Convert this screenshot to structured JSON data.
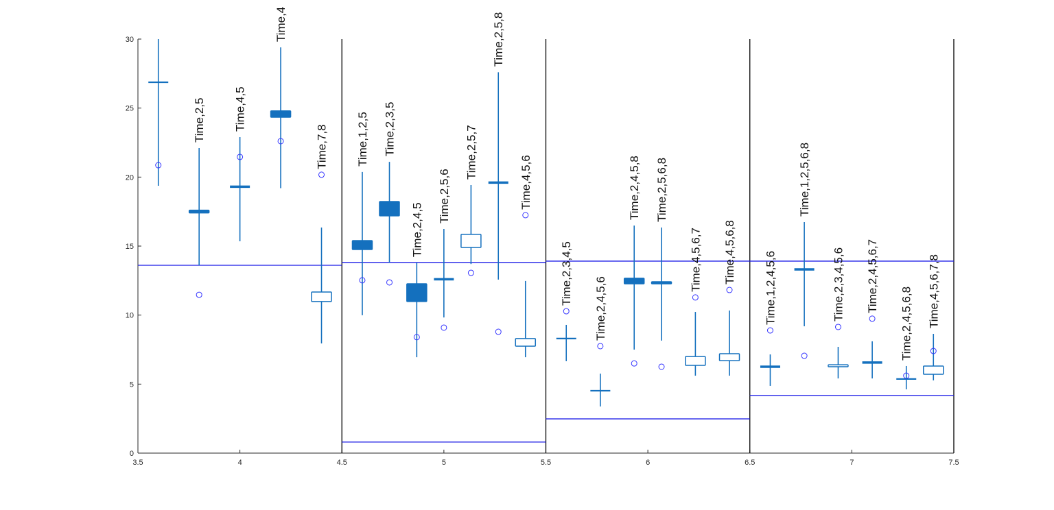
{
  "chart_data": {
    "type": "boxplot",
    "title": "",
    "xlabel": "",
    "ylabel": "",
    "xlim": [
      3.5,
      7.5
    ],
    "ylim": [
      0,
      30
    ],
    "xticks": [
      "3.5",
      "4",
      "4.5",
      "5",
      "5.5",
      "6",
      "6.5",
      "7",
      "7.5"
    ],
    "yticks": [
      "0",
      "5",
      "10",
      "15",
      "20",
      "25",
      "30"
    ],
    "grid": false,
    "colors": {
      "box": "#1470be",
      "point": "#3333ff",
      "reference_line": "#1a1ae6",
      "separator": "#000000"
    },
    "separators": [
      4.5,
      5.5,
      6.5,
      7.5
    ],
    "reference_lines": [
      {
        "x": [
          3.5,
          4.5
        ],
        "y": [
          13.61
        ]
      },
      {
        "x": [
          4.5,
          5.5
        ],
        "y": [
          13.81,
          0.8
        ]
      },
      {
        "x": [
          5.5,
          6.5
        ],
        "y": [
          13.91,
          2.48
        ]
      },
      {
        "x": [
          6.5,
          7.5
        ],
        "y": [
          13.91,
          4.17
        ]
      }
    ],
    "items": [
      {
        "x": 3.6,
        "label": "",
        "whisker": [
          19.37,
          30
        ],
        "box": [
          26.87,
          26.87
        ],
        "filled": false,
        "point": 20.86
      },
      {
        "x": 3.8,
        "label": "Time,2,5",
        "whisker": [
          13.6,
          22.1
        ],
        "box": [
          17.4,
          17.6
        ],
        "filled": true,
        "point": 11.47
      },
      {
        "x": 4.0,
        "label": "Time,4,5",
        "whisker": [
          15.35,
          22.9
        ],
        "box": [
          19.3,
          19.3
        ],
        "filled": true,
        "point": 21.46
      },
      {
        "x": 4.2,
        "label": "Time,4",
        "whisker": [
          19.2,
          29.4
        ],
        "box": [
          24.34,
          24.8
        ],
        "filled": true,
        "point": 22.6
      },
      {
        "x": 4.4,
        "label": "Time,7,8",
        "whisker": [
          7.95,
          16.35
        ],
        "box": [
          10.98,
          11.67
        ],
        "filled": false,
        "point": 20.17
      },
      {
        "x": 4.6,
        "label": "Time,1,2,5",
        "whisker": [
          9.99,
          20.37
        ],
        "box": [
          14.75,
          15.4
        ],
        "filled": true,
        "point": 12.52
      },
      {
        "x": 4.733,
        "label": "Time,2,3,5",
        "whisker": [
          13.8,
          21.1
        ],
        "box": [
          17.19,
          18.23
        ],
        "filled": true,
        "point": 12.37
      },
      {
        "x": 4.867,
        "label": "Time,2,4,5",
        "whisker": [
          6.95,
          13.8
        ],
        "box": [
          10.98,
          12.27
        ],
        "filled": true,
        "point": 8.4
      },
      {
        "x": 5.0,
        "label": "Time,2,5,6",
        "whisker": [
          9.83,
          16.24
        ],
        "box": [
          12.6,
          12.6
        ],
        "filled": true,
        "point": 9.09
      },
      {
        "x": 5.133,
        "label": "Time,2,5,7",
        "whisker": [
          13.7,
          19.42
        ],
        "box": [
          14.9,
          15.85
        ],
        "filled": false,
        "point": 13.06
      },
      {
        "x": 5.267,
        "label": "Time,2,5,8",
        "whisker": [
          12.57,
          27.6
        ],
        "box": [
          19.6,
          19.6
        ],
        "filled": true,
        "point": 8.79
      },
      {
        "x": 5.4,
        "label": "Time,4,5,6",
        "whisker": [
          6.95,
          12.47
        ],
        "box": [
          7.75,
          8.3
        ],
        "filled": false,
        "point": 17.24
      },
      {
        "x": 5.6,
        "label": "Time,2,3,4,5",
        "whisker": [
          6.66,
          9.29
        ],
        "box": [
          8.3,
          8.3
        ],
        "filled": false,
        "point": 10.28
      },
      {
        "x": 5.767,
        "label": "Time,2,4,5,6",
        "whisker": [
          3.38,
          5.76
        ],
        "box": [
          4.52,
          4.52
        ],
        "filled": false,
        "point": 7.75
      },
      {
        "x": 5.933,
        "label": "Time,2,4,5,8",
        "whisker": [
          7.5,
          16.49
        ],
        "box": [
          12.27,
          12.67
        ],
        "filled": true,
        "point": 6.5
      },
      {
        "x": 6.067,
        "label": "Time,2,5,6,8",
        "whisker": [
          8.15,
          16.35
        ],
        "box": [
          12.27,
          12.42
        ],
        "filled": true,
        "point": 6.26
      },
      {
        "x": 6.233,
        "label": "Time,4,5,6,7",
        "whisker": [
          5.61,
          10.23
        ],
        "box": [
          6.36,
          7.0
        ],
        "filled": false,
        "point": 11.28
      },
      {
        "x": 6.4,
        "label": "Time,4,5,6,8",
        "whisker": [
          5.61,
          10.33
        ],
        "box": [
          6.7,
          7.2
        ],
        "filled": false,
        "point": 11.82
      },
      {
        "x": 6.6,
        "label": "Time,1,2,4,5,6",
        "whisker": [
          4.87,
          7.15
        ],
        "box": [
          6.26,
          6.26
        ],
        "filled": true,
        "point": 8.89
      },
      {
        "x": 6.767,
        "label": "Time,1,2,5,6,8",
        "whisker": [
          9.19,
          16.74
        ],
        "box": [
          13.31,
          13.31
        ],
        "filled": true,
        "point": 7.05
      },
      {
        "x": 6.933,
        "label": "Time,2,3,4,5,6",
        "whisker": [
          5.41,
          7.7
        ],
        "box": [
          6.26,
          6.4
        ],
        "filled": false,
        "point": 9.14
      },
      {
        "x": 7.1,
        "label": "Time,2,4,5,6,7",
        "whisker": [
          5.41,
          8.1
        ],
        "box": [
          6.56,
          6.56
        ],
        "filled": true,
        "point": 9.74
      },
      {
        "x": 7.267,
        "label": "Time,2,4,5,6,8",
        "whisker": [
          4.62,
          6.31
        ],
        "box": [
          5.37,
          5.37
        ],
        "filled": false,
        "point": 5.61
      },
      {
        "x": 7.4,
        "label": "Time,4,5,6,7,8",
        "whisker": [
          5.27,
          8.64
        ],
        "box": [
          5.71,
          6.31
        ],
        "filled": false,
        "point": 7.4
      }
    ]
  }
}
